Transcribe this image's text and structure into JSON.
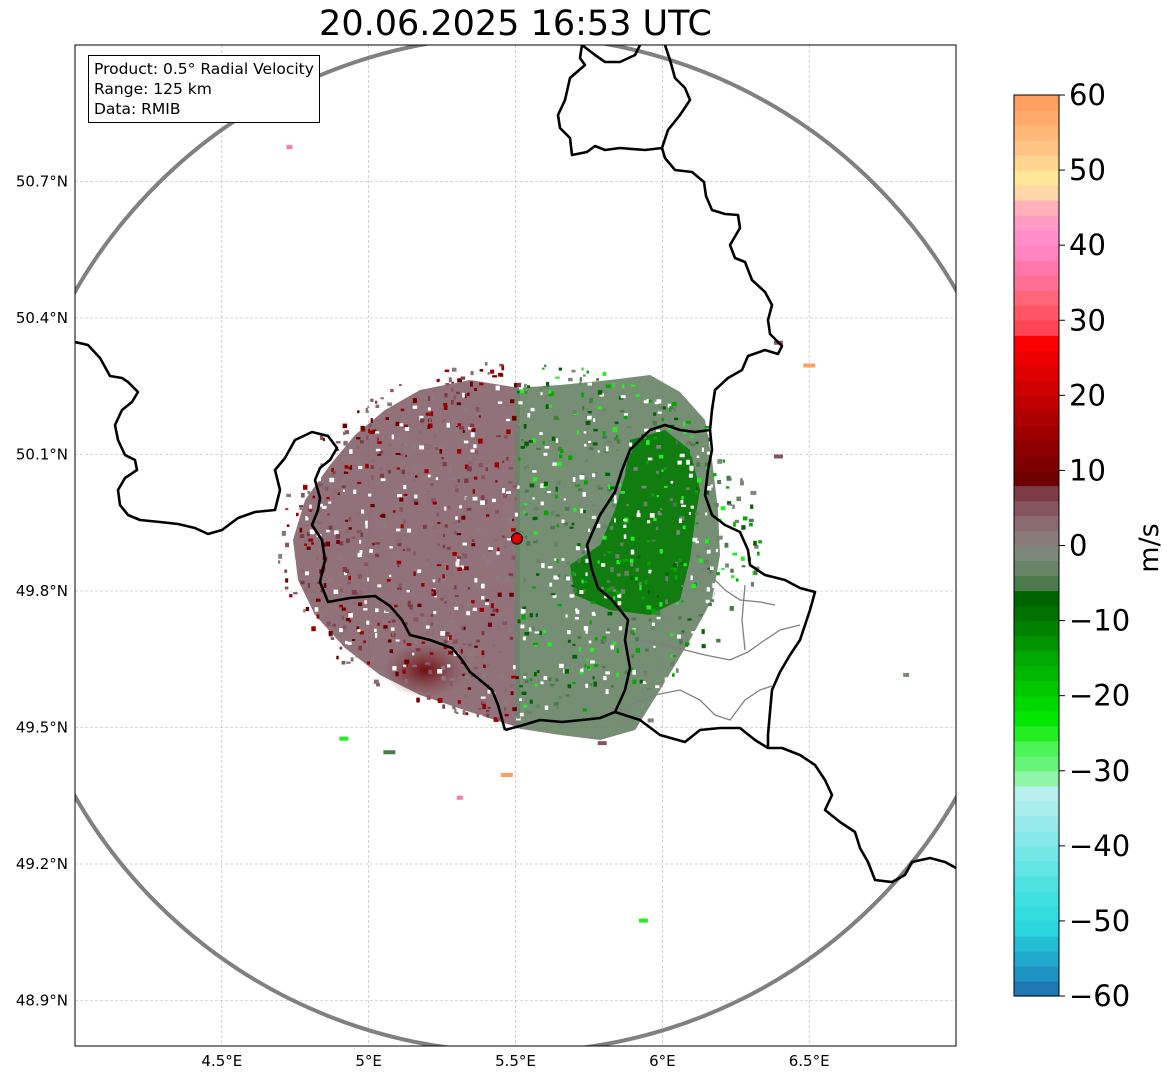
{
  "title": "20.06.2025 16:53 UTC",
  "info_box": {
    "product": "Product: 0.5° Radial Velocity",
    "range": "Range: 125 km",
    "source": "Data: RMIB"
  },
  "map": {
    "lon_range": [
      4.0,
      7.0
    ],
    "lat_range": [
      48.8,
      51.0
    ],
    "lon_ticks": [
      {
        "value": 4.5,
        "label": "4.5°E"
      },
      {
        "value": 5.0,
        "label": "5°E"
      },
      {
        "value": 5.5,
        "label": "5.5°E"
      },
      {
        "value": 6.0,
        "label": "6°E"
      },
      {
        "value": 6.5,
        "label": "6.5°E"
      }
    ],
    "lat_ticks": [
      {
        "value": 50.7,
        "label": "50.7°N"
      },
      {
        "value": 50.4,
        "label": "50.4°N"
      },
      {
        "value": 50.1,
        "label": "50.1°N"
      },
      {
        "value": 49.8,
        "label": "49.8°N"
      },
      {
        "value": 49.5,
        "label": "49.5°N"
      },
      {
        "value": 49.2,
        "label": "49.2°N"
      },
      {
        "value": 48.9,
        "label": "48.9°N"
      }
    ],
    "gridlines": true,
    "radar_site": {
      "lon": 5.505,
      "lat": 49.915,
      "color": "#e00000"
    },
    "range_ring_color": "#808080"
  },
  "colorbar": {
    "label": "m/s",
    "min": -60,
    "max": 60,
    "ticks": [
      {
        "value": 60,
        "label": "60"
      },
      {
        "value": 50,
        "label": "50"
      },
      {
        "value": 40,
        "label": "40"
      },
      {
        "value": 30,
        "label": "30"
      },
      {
        "value": 20,
        "label": "20"
      },
      {
        "value": 10,
        "label": "10"
      },
      {
        "value": 0,
        "label": "0"
      },
      {
        "value": -10,
        "label": "−10"
      },
      {
        "value": -20,
        "label": "−20"
      },
      {
        "value": -30,
        "label": "−30"
      },
      {
        "value": -40,
        "label": "−40"
      },
      {
        "value": -50,
        "label": "−50"
      },
      {
        "value": -60,
        "label": "−60"
      }
    ],
    "bands": [
      {
        "from": -60,
        "to": -58,
        "color": "#1f77b4"
      },
      {
        "from": -58,
        "to": -56,
        "color": "#1f92c4"
      },
      {
        "from": -56,
        "to": -54,
        "color": "#20a8cf"
      },
      {
        "from": -54,
        "to": -52,
        "color": "#24bed4"
      },
      {
        "from": -52,
        "to": -50,
        "color": "#2bd6dc"
      },
      {
        "from": -50,
        "to": -48,
        "color": "#32dde0"
      },
      {
        "from": -48,
        "to": -46,
        "color": "#40e0e0"
      },
      {
        "from": -46,
        "to": -44,
        "color": "#4fe2e2"
      },
      {
        "from": -44,
        "to": -42,
        "color": "#62e4e4"
      },
      {
        "from": -42,
        "to": -40,
        "color": "#74e6e6"
      },
      {
        "from": -40,
        "to": -38,
        "color": "#86e8e8"
      },
      {
        "from": -38,
        "to": -36,
        "color": "#98eaea"
      },
      {
        "from": -36,
        "to": -34,
        "color": "#a8ecec"
      },
      {
        "from": -34,
        "to": -32,
        "color": "#b8eeee"
      },
      {
        "from": -32,
        "to": -30,
        "color": "#8ff5a8"
      },
      {
        "from": -30,
        "to": -28,
        "color": "#66f578"
      },
      {
        "from": -28,
        "to": -26,
        "color": "#4cf455"
      },
      {
        "from": -26,
        "to": -24,
        "color": "#22ee22"
      },
      {
        "from": -24,
        "to": -22,
        "color": "#00e600"
      },
      {
        "from": -22,
        "to": -20,
        "color": "#00d800"
      },
      {
        "from": -20,
        "to": -18,
        "color": "#00c800"
      },
      {
        "from": -18,
        "to": -16,
        "color": "#00b800"
      },
      {
        "from": -16,
        "to": -14,
        "color": "#00a800"
      },
      {
        "from": -14,
        "to": -12,
        "color": "#009400"
      },
      {
        "from": -12,
        "to": -10,
        "color": "#008200"
      },
      {
        "from": -10,
        "to": -8,
        "color": "#007200"
      },
      {
        "from": -8,
        "to": -6,
        "color": "#006400"
      },
      {
        "from": -6,
        "to": -4,
        "color": "#4d7a4d"
      },
      {
        "from": -4,
        "to": -2,
        "color": "#678467"
      },
      {
        "from": -2,
        "to": 0,
        "color": "#7c887a"
      },
      {
        "from": 0,
        "to": 2,
        "color": "#8a7b7b"
      },
      {
        "from": 2,
        "to": 4,
        "color": "#8a6b72"
      },
      {
        "from": 4,
        "to": 6,
        "color": "#875560"
      },
      {
        "from": 6,
        "to": 8,
        "color": "#7d3b45"
      },
      {
        "from": 8,
        "to": 10,
        "color": "#6e0000"
      },
      {
        "from": 10,
        "to": 12,
        "color": "#7e0000"
      },
      {
        "from": 12,
        "to": 14,
        "color": "#8e0000"
      },
      {
        "from": 14,
        "to": 16,
        "color": "#9e0000"
      },
      {
        "from": 16,
        "to": 18,
        "color": "#ae0000"
      },
      {
        "from": 18,
        "to": 20,
        "color": "#be0000"
      },
      {
        "from": 20,
        "to": 22,
        "color": "#ce0000"
      },
      {
        "from": 22,
        "to": 24,
        "color": "#de0000"
      },
      {
        "from": 24,
        "to": 26,
        "color": "#ee0000"
      },
      {
        "from": 26,
        "to": 28,
        "color": "#fa0000"
      },
      {
        "from": 28,
        "to": 30,
        "color": "#ff4455"
      },
      {
        "from": 30,
        "to": 32,
        "color": "#ff5566"
      },
      {
        "from": 32,
        "to": 34,
        "color": "#ff6677"
      },
      {
        "from": 34,
        "to": 36,
        "color": "#ff6f93"
      },
      {
        "from": 36,
        "to": 38,
        "color": "#ff77aa"
      },
      {
        "from": 38,
        "to": 40,
        "color": "#ff84c0"
      },
      {
        "from": 40,
        "to": 42,
        "color": "#ff8dcc"
      },
      {
        "from": 42,
        "to": 44,
        "color": "#ff9cc6"
      },
      {
        "from": 44,
        "to": 46,
        "color": "#ffb0b8"
      },
      {
        "from": 46,
        "to": 48,
        "color": "#ffd8aa"
      },
      {
        "from": 48,
        "to": 50,
        "color": "#ffe699"
      },
      {
        "from": 50,
        "to": 52,
        "color": "#ffd590"
      },
      {
        "from": 52,
        "to": 54,
        "color": "#ffc484"
      },
      {
        "from": 54,
        "to": 56,
        "color": "#ffb878"
      },
      {
        "from": 56,
        "to": 58,
        "color": "#ffaa6c"
      },
      {
        "from": 58,
        "to": 60,
        "color": "#ff9f60"
      }
    ]
  }
}
